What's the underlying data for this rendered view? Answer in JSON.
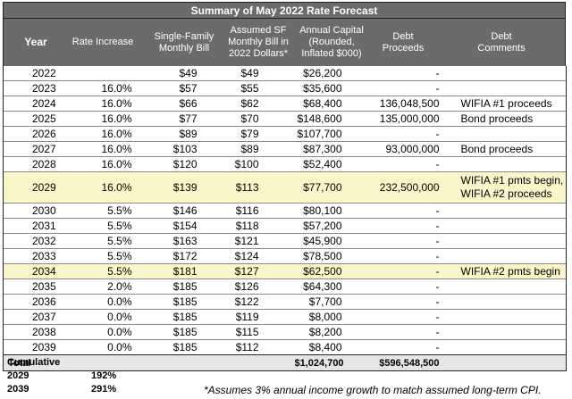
{
  "title": "Summary of May 2022 Rate Forecast",
  "headers": {
    "year": "Year",
    "rate": "Rate Increase",
    "sf": "Single-Family Monthly Bill",
    "asf": "Assumed SF Monthly Bill in 2022 Dollars*",
    "cap": "Annual Capital (Rounded, Inflated $000)",
    "debt": "Debt Proceeds",
    "comments": "Debt Comments"
  },
  "rows": [
    {
      "year": "2022",
      "rate": "",
      "sf": "$49",
      "asf": "$49",
      "cap": "$26,200",
      "debt": "-",
      "comments": ""
    },
    {
      "year": "2023",
      "rate": "16.0%",
      "sf": "$57",
      "asf": "$55",
      "cap": "$35,600",
      "debt": "-",
      "comments": ""
    },
    {
      "year": "2024",
      "rate": "16.0%",
      "sf": "$66",
      "asf": "$62",
      "cap": "$68,400",
      "debt": "136,048,500",
      "comments": "WIFIA #1 proceeds"
    },
    {
      "year": "2025",
      "rate": "16.0%",
      "sf": "$77",
      "asf": "$70",
      "cap": "$148,600",
      "debt": "135,000,000",
      "comments": "Bond proceeds"
    },
    {
      "year": "2026",
      "rate": "16.0%",
      "sf": "$89",
      "asf": "$79",
      "cap": "$107,700",
      "debt": "-",
      "comments": ""
    },
    {
      "year": "2027",
      "rate": "16.0%",
      "sf": "$103",
      "asf": "$89",
      "cap": "$87,300",
      "debt": "93,000,000",
      "comments": "Bond proceeds"
    },
    {
      "year": "2028",
      "rate": "16.0%",
      "sf": "$120",
      "asf": "$100",
      "cap": "$52,400",
      "debt": "-",
      "comments": ""
    },
    {
      "year": "2029",
      "rate": "16.0%",
      "sf": "$139",
      "asf": "$113",
      "cap": "$77,700",
      "debt": "232,500,000",
      "comments": "WIFIA #1 pmts begin,",
      "comments2": "WIFIA #2 proceeds"
    },
    {
      "year": "2030",
      "rate": "5.5%",
      "sf": "$146",
      "asf": "$116",
      "cap": "$80,100",
      "debt": "-",
      "comments": ""
    },
    {
      "year": "2031",
      "rate": "5.5%",
      "sf": "$154",
      "asf": "$118",
      "cap": "$57,200",
      "debt": "-",
      "comments": ""
    },
    {
      "year": "2032",
      "rate": "5.5%",
      "sf": "$163",
      "asf": "$121",
      "cap": "$45,900",
      "debt": "-",
      "comments": ""
    },
    {
      "year": "2033",
      "rate": "5.5%",
      "sf": "$172",
      "asf": "$124",
      "cap": "$78,500",
      "debt": "-",
      "comments": ""
    },
    {
      "year": "2034",
      "rate": "5.5%",
      "sf": "$181",
      "asf": "$127",
      "cap": "$62,500",
      "debt": "-",
      "comments": "WIFIA #2 pmts begin"
    },
    {
      "year": "2035",
      "rate": "2.0%",
      "sf": "$185",
      "asf": "$126",
      "cap": "$64,300",
      "debt": "-",
      "comments": ""
    },
    {
      "year": "2036",
      "rate": "0.0%",
      "sf": "$185",
      "asf": "$122",
      "cap": "$7,700",
      "debt": "-",
      "comments": ""
    },
    {
      "year": "2037",
      "rate": "0.0%",
      "sf": "$185",
      "asf": "$119",
      "cap": "$8,000",
      "debt": "-",
      "comments": ""
    },
    {
      "year": "2038",
      "rate": "0.0%",
      "sf": "$185",
      "asf": "$115",
      "cap": "$8,200",
      "debt": "-",
      "comments": ""
    },
    {
      "year": "2039",
      "rate": "0.0%",
      "sf": "$185",
      "asf": "$112",
      "cap": "$8,400",
      "debt": "-",
      "comments": ""
    }
  ],
  "total": {
    "label": "Total",
    "cap": "$1,024,700",
    "debt": "$596,548,500"
  },
  "cumulative": {
    "label": "Cumulative",
    "items": [
      {
        "year": "2029",
        "value": "192%"
      },
      {
        "year": "2039",
        "value": "291%"
      }
    ]
  },
  "note": "*Assumes 3% annual income growth to match assumed long-term CPI."
}
